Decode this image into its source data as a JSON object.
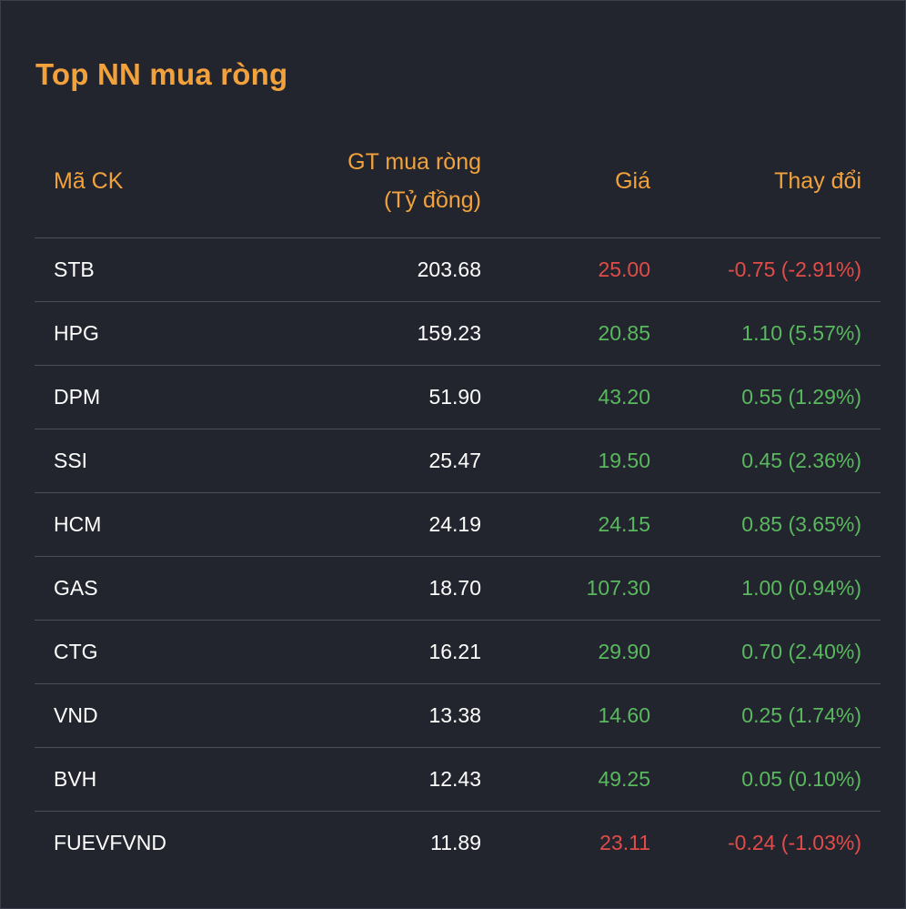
{
  "title": "Top NN mua ròng",
  "colors": {
    "background": "#22252e",
    "accent": "#f2a23c",
    "up": "#5ab85f",
    "down": "#e14c48",
    "text": "#ffffff"
  },
  "headers": {
    "code": "Mã CK",
    "value_line1": "GT mua ròng",
    "value_line2": "(Tỷ đồng)",
    "price": "Giá",
    "change": "Thay đổi"
  },
  "rows": [
    {
      "code": "STB",
      "value": "203.68",
      "price": "25.00",
      "change": "-0.75 (-2.91%)",
      "direction": "down"
    },
    {
      "code": "HPG",
      "value": "159.23",
      "price": "20.85",
      "change": "1.10 (5.57%)",
      "direction": "up"
    },
    {
      "code": "DPM",
      "value": "51.90",
      "price": "43.20",
      "change": "0.55 (1.29%)",
      "direction": "up"
    },
    {
      "code": "SSI",
      "value": "25.47",
      "price": "19.50",
      "change": "0.45 (2.36%)",
      "direction": "up"
    },
    {
      "code": "HCM",
      "value": "24.19",
      "price": "24.15",
      "change": "0.85 (3.65%)",
      "direction": "up"
    },
    {
      "code": "GAS",
      "value": "18.70",
      "price": "107.30",
      "change": "1.00 (0.94%)",
      "direction": "up"
    },
    {
      "code": "CTG",
      "value": "16.21",
      "price": "29.90",
      "change": "0.70 (2.40%)",
      "direction": "up"
    },
    {
      "code": "VND",
      "value": "13.38",
      "price": "14.60",
      "change": "0.25 (1.74%)",
      "direction": "up"
    },
    {
      "code": "BVH",
      "value": "12.43",
      "price": "49.25",
      "change": "0.05 (0.10%)",
      "direction": "up"
    },
    {
      "code": "FUEVFVND",
      "value": "11.89",
      "price": "23.11",
      "change": "-0.24 (-1.03%)",
      "direction": "down"
    }
  ]
}
